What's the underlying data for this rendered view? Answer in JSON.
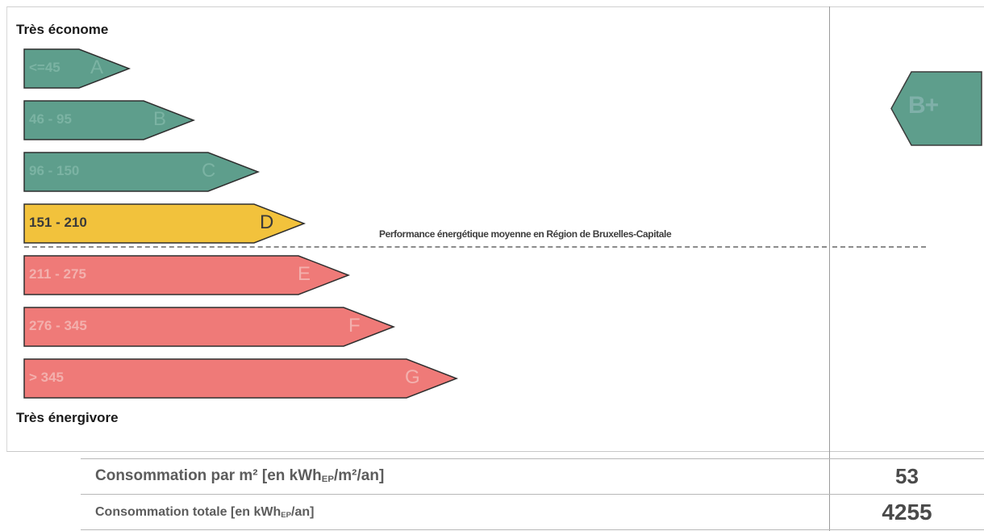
{
  "scale": {
    "top_label": "Très économe",
    "bottom_label": "Très énergivore",
    "classes": [
      {
        "range": "<=45",
        "letter": "A",
        "color": "#5e9e8c",
        "text_color": "#7bb3a3"
      },
      {
        "range": "46 - 95",
        "letter": "B",
        "color": "#5e9e8c",
        "text_color": "#7bb3a3"
      },
      {
        "range": "96 - 150",
        "letter": "C",
        "color": "#5e9e8c",
        "text_color": "#7bb3a3"
      },
      {
        "range": "151 - 210",
        "letter": "D",
        "color": "#f2c23c",
        "text_color": "#3a3a3a"
      },
      {
        "range": "211 - 275",
        "letter": "E",
        "color": "#ef7a78",
        "text_color": "#f3b0ad"
      },
      {
        "range": "276 - 345",
        "letter": "F",
        "color": "#ef7a78",
        "text_color": "#f3b0ad"
      },
      {
        "range": "> 345",
        "letter": "G",
        "color": "#ef7a78",
        "text_color": "#f3b0ad"
      }
    ]
  },
  "average_label": "Performance énergétique moyenne en Région de Bruxelles-Capitale",
  "rating": {
    "label": "B+",
    "color": "#5e9e8c"
  },
  "rows": [
    {
      "label": "Consommation par m² [en kWh",
      "sub": "EP",
      "label_end": "/m²/an]",
      "value": "53"
    },
    {
      "label": "Consommation totale [en kWh",
      "sub": "EP",
      "label_end": "/an]",
      "value": "4255"
    }
  ]
}
